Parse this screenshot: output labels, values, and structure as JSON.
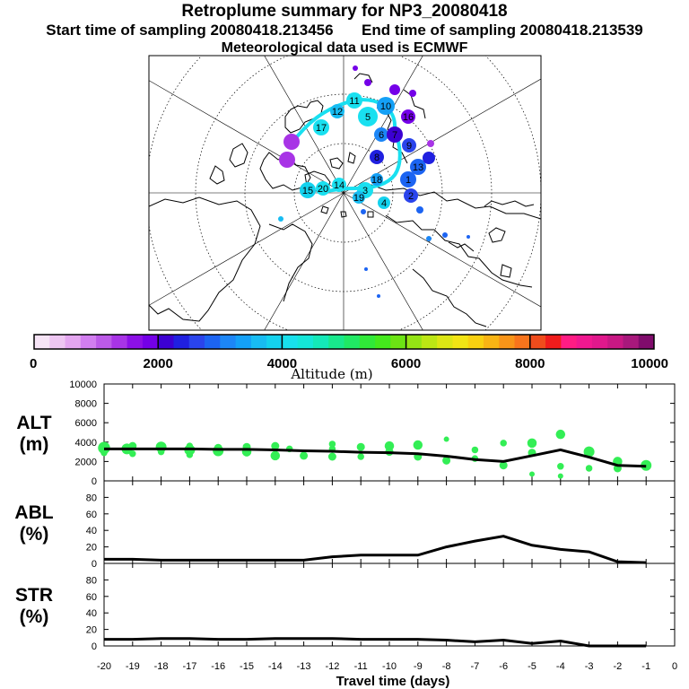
{
  "header": {
    "title": "Retroplume summary for NP3_20080418",
    "start_label": "Start time of sampling 20080418.213456",
    "end_label": "End time of sampling 20080418.213539",
    "met_label": "Meteorological data used is ECMWF"
  },
  "colors": {
    "plume": "#19e0f0",
    "alt_points": "#33ee55",
    "line": "#000000"
  },
  "map": {
    "plume_labels": [
      "1",
      "2",
      "3",
      "4",
      "5",
      "6",
      "7",
      "8",
      "9",
      "10",
      "11",
      "12",
      "13",
      "14",
      "15",
      "16",
      "17",
      "18",
      "19",
      "20"
    ]
  },
  "colorbar": {
    "ticks": [
      "0",
      "2000",
      "4000",
      "6000",
      "8000",
      "10000"
    ],
    "label": "Altitude (m)",
    "colors": [
      "#f6e4f6",
      "#eec6f2",
      "#e4a6f0",
      "#d27ef0",
      "#bc5ae8",
      "#a834e6",
      "#8c10e6",
      "#7400e8",
      "#3c00d2",
      "#2020e0",
      "#2a44ec",
      "#1c64f2",
      "#1c86f6",
      "#14a0f6",
      "#18bcf2",
      "#14d2ee",
      "#18e0ec",
      "#14e6d8",
      "#14e8b8",
      "#18e88c",
      "#20e864",
      "#30e838",
      "#44e81c",
      "#6ce414",
      "#94e414",
      "#bce614",
      "#dce614",
      "#f2e414",
      "#f8d010",
      "#f8b414",
      "#f89418",
      "#f8741c",
      "#f04c1c",
      "#f01c1c",
      "#ff1c84",
      "#f01890",
      "#e0188c",
      "#c81884",
      "#a8187c",
      "#800c6c"
    ]
  },
  "chart_data": [
    {
      "type": "scatter",
      "panel": "ALT",
      "ylabel": "ALT\n(m)",
      "ylabel_line1": "ALT",
      "ylabel_line2": "(m)",
      "ylim": [
        0,
        10000
      ],
      "yticks": [
        "0",
        "2000",
        "4000",
        "6000",
        "8000",
        "10000"
      ],
      "x": [
        -20,
        -19,
        -18,
        -17,
        -16,
        -15,
        -14,
        -13,
        -12,
        -11,
        -10,
        -9,
        -8,
        -7,
        -6,
        -5,
        -4,
        -3,
        -2,
        -1
      ],
      "line": [
        3300,
        3300,
        3300,
        3300,
        3250,
        3250,
        3200,
        3100,
        3050,
        2950,
        2900,
        2800,
        2550,
        2200,
        2000,
        2600,
        3200,
        2450,
        1600,
        1500
      ],
      "points": [
        [
          -20,
          3400,
          9
        ],
        [
          -20,
          2900,
          5
        ],
        [
          -19.2,
          3300,
          8
        ],
        [
          -19,
          3600,
          6
        ],
        [
          -19,
          2800,
          5
        ],
        [
          -18,
          3500,
          8
        ],
        [
          -18,
          3000,
          5
        ],
        [
          -17,
          3600,
          5
        ],
        [
          -17,
          3200,
          8
        ],
        [
          -17,
          2700,
          5
        ],
        [
          -16,
          3400,
          6
        ],
        [
          -16,
          3100,
          8
        ],
        [
          -15,
          3500,
          6
        ],
        [
          -15,
          3000,
          7
        ],
        [
          -14,
          3600,
          6
        ],
        [
          -14,
          2600,
          7
        ],
        [
          -13.5,
          3300,
          5
        ],
        [
          -13,
          2600,
          6
        ],
        [
          -12,
          3800,
          5
        ],
        [
          -12,
          3300,
          5
        ],
        [
          -12,
          2500,
          6
        ],
        [
          -11,
          3500,
          6
        ],
        [
          -11,
          2500,
          5
        ],
        [
          -10,
          3600,
          7
        ],
        [
          -10,
          3000,
          6
        ],
        [
          -9,
          3700,
          7
        ],
        [
          -9,
          2500,
          6
        ],
        [
          -8,
          4300,
          4
        ],
        [
          -8,
          2100,
          6
        ],
        [
          -7,
          3200,
          5
        ],
        [
          -7,
          2300,
          5
        ],
        [
          -6,
          3900,
          5
        ],
        [
          -6,
          1600,
          6
        ],
        [
          -5,
          3900,
          7
        ],
        [
          -5,
          2900,
          6
        ],
        [
          -5,
          700,
          4
        ],
        [
          -4,
          4800,
          7
        ],
        [
          -4,
          1500,
          5
        ],
        [
          -4,
          500,
          4
        ],
        [
          -3,
          3000,
          8
        ],
        [
          -3,
          1300,
          5
        ],
        [
          -2,
          2000,
          7
        ],
        [
          -2,
          1300,
          6
        ],
        [
          -1,
          1600,
          8
        ]
      ]
    },
    {
      "type": "line",
      "panel": "ABL",
      "ylabel_line1": "ABL",
      "ylabel_line2": "(%)",
      "ylim": [
        0,
        100
      ],
      "yticks": [
        "0",
        "20",
        "40",
        "60",
        "80"
      ],
      "x": [
        -20,
        -19,
        -18,
        -17,
        -16,
        -15,
        -14,
        -13,
        -12,
        -11,
        -10,
        -9,
        -8,
        -7,
        -6,
        -5,
        -4,
        -3,
        -2,
        -1
      ],
      "values": [
        5,
        5,
        4,
        4,
        4,
        4,
        4,
        4,
        8,
        10,
        10,
        10,
        20,
        27,
        33,
        22,
        17,
        14,
        2,
        1
      ]
    },
    {
      "type": "line",
      "panel": "STR",
      "ylabel_line1": "STR",
      "ylabel_line2": "(%)",
      "ylim": [
        0,
        100
      ],
      "yticks": [
        "0",
        "20",
        "40",
        "60",
        "80"
      ],
      "x": [
        -20,
        -19,
        -18,
        -17,
        -16,
        -15,
        -14,
        -13,
        -12,
        -11,
        -10,
        -9,
        -8,
        -7,
        -6,
        -5,
        -4,
        -3,
        -2,
        -1
      ],
      "values": [
        8,
        8,
        9,
        9,
        8,
        8,
        9,
        9,
        9,
        8,
        8,
        8,
        7,
        5,
        7,
        3,
        6,
        0,
        0,
        0
      ]
    }
  ],
  "xaxis": {
    "ticks": [
      "-20",
      "-19",
      "-18",
      "-17",
      "-16",
      "-15",
      "-14",
      "-13",
      "-12",
      "-11",
      "-10",
      "-9",
      "-8",
      "-7",
      "-6",
      "-5",
      "-4",
      "-3",
      "-2",
      "-1",
      "0"
    ],
    "label": "Travel time (days)"
  }
}
